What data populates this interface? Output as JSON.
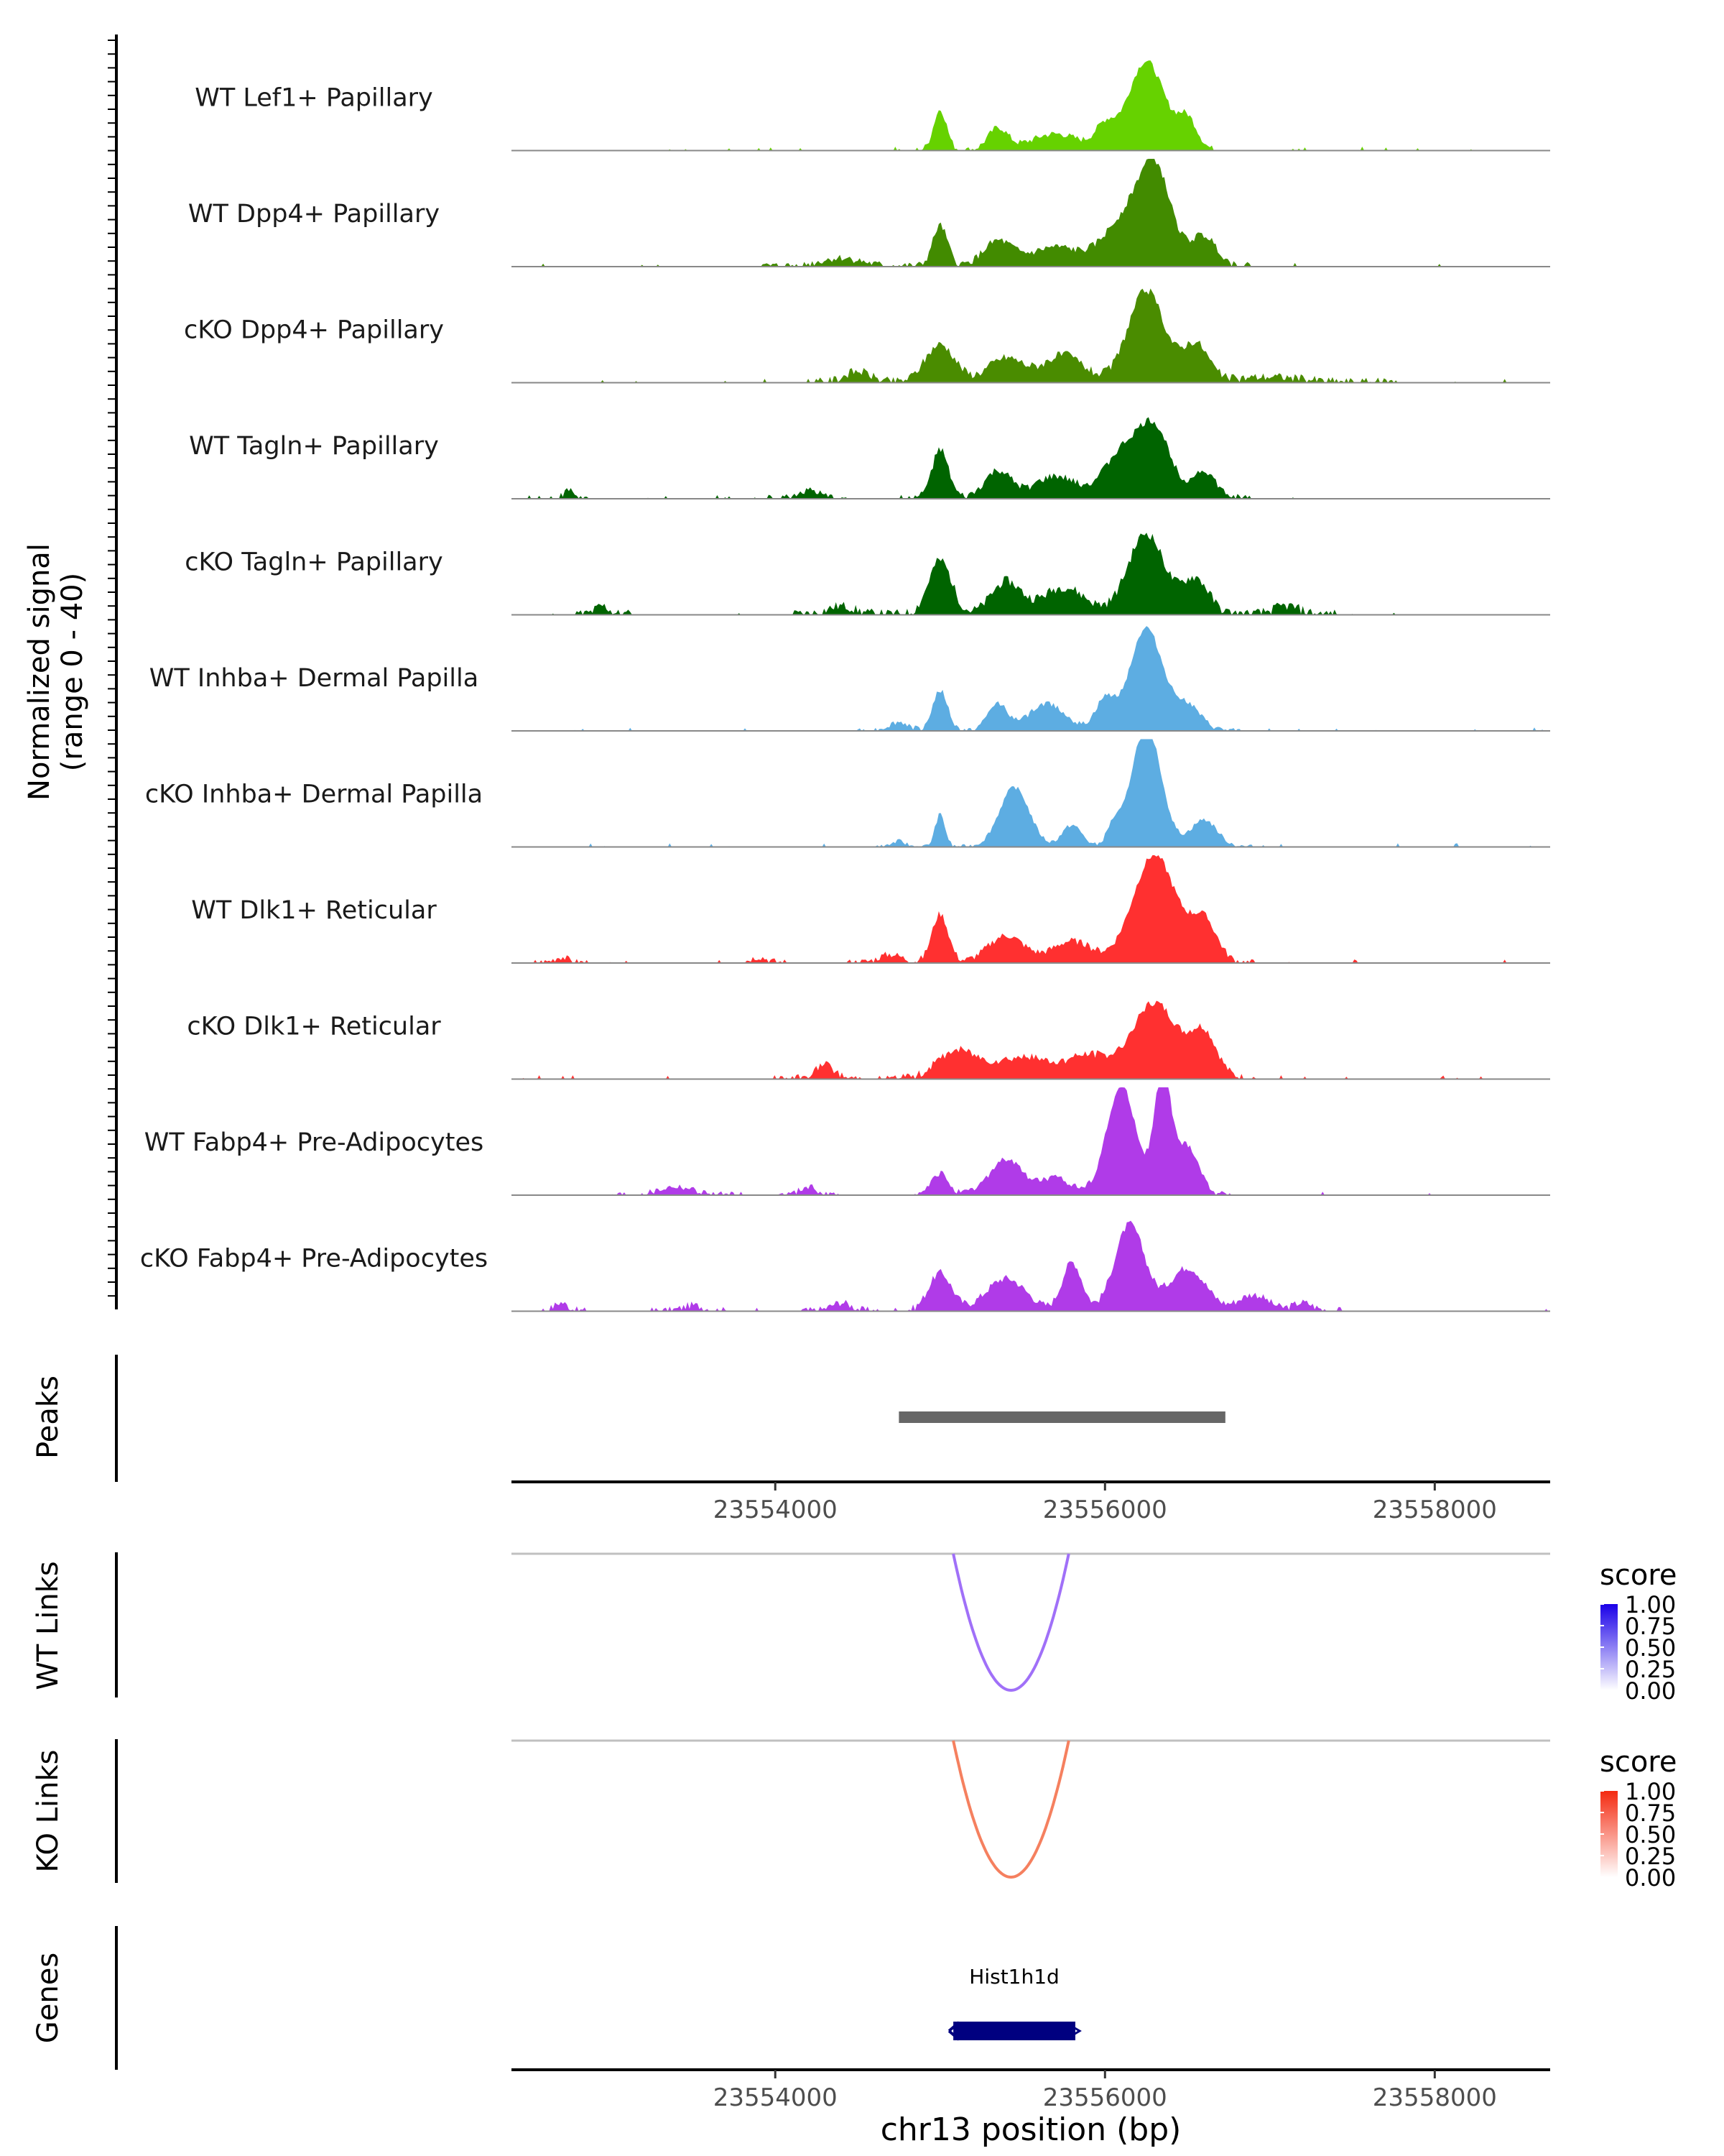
{
  "chart_data": {
    "type": "area",
    "region": {
      "chromosome": "chr13",
      "start": 23552400,
      "end": 23558700
    },
    "coverage": {
      "ylabel_line1": "Normalized signal",
      "ylabel_line2": "(range 0 - 40)",
      "ylim": [
        0,
        40
      ],
      "tracks": [
        {
          "name": "WT Lef1+ Papillary",
          "color": "#66D200",
          "peaks": [
            [
              23555000,
              15,
              40
            ],
            [
              23555350,
              8,
              60
            ],
            [
              23555700,
              6,
              150
            ],
            [
              23556000,
              8,
              60
            ],
            [
              23556250,
              33,
              110
            ],
            [
              23556500,
              11,
              60
            ]
          ],
          "noise": 1.2
        },
        {
          "name": "WT Dpp4+ Papillary",
          "color": "#428B00",
          "peaks": [
            [
              23554400,
              3,
              120
            ],
            [
              23555000,
              15,
              45
            ],
            [
              23555350,
              9,
              90
            ],
            [
              23555700,
              7,
              150
            ],
            [
              23556100,
              15,
              120
            ],
            [
              23556300,
              36,
              100
            ],
            [
              23556600,
              11,
              80
            ]
          ],
          "noise": 1.4
        },
        {
          "name": "cKO Dpp4+ Papillary",
          "color": "#4A8C00",
          "peaks": [
            [
              23554500,
              4,
              80
            ],
            [
              23555000,
              14,
              90
            ],
            [
              23555400,
              9,
              110
            ],
            [
              23555750,
              10,
              120
            ],
            [
              23556250,
              34,
              110
            ],
            [
              23556550,
              14,
              80
            ],
            [
              23557000,
              2,
              200
            ]
          ],
          "noise": 1.6
        },
        {
          "name": "WT Tagln+ Papillary",
          "color": "#006400",
          "peaks": [
            [
              23552750,
              3,
              30
            ],
            [
              23554200,
              3,
              60
            ],
            [
              23555000,
              18,
              50
            ],
            [
              23555350,
              10,
              80
            ],
            [
              23555700,
              8,
              130
            ],
            [
              23556100,
              16,
              110
            ],
            [
              23556300,
              25,
              100
            ],
            [
              23556600,
              10,
              70
            ]
          ],
          "noise": 1.4
        },
        {
          "name": "cKO Tagln+ Papillary",
          "color": "#006400",
          "peaks": [
            [
              23552950,
              3,
              40
            ],
            [
              23554400,
              3,
              80
            ],
            [
              23555000,
              20,
              70
            ],
            [
              23555400,
              12,
              90
            ],
            [
              23555750,
              10,
              130
            ],
            [
              23556250,
              30,
              110
            ],
            [
              23556550,
              13,
              80
            ],
            [
              23557100,
              3,
              80
            ]
          ],
          "noise": 1.8
        },
        {
          "name": "WT Inhba+ Dermal Papilla",
          "color": "#5DADE2",
          "peaks": [
            [
              23554750,
              3,
              60
            ],
            [
              23555000,
              15,
              45
            ],
            [
              23555350,
              10,
              60
            ],
            [
              23555650,
              10,
              110
            ],
            [
              23556000,
              11,
              60
            ],
            [
              23556250,
              38,
              100
            ],
            [
              23556500,
              9,
              80
            ]
          ],
          "noise": 1.0
        },
        {
          "name": "cKO Inhba+ Dermal Papilla",
          "color": "#5DADE2",
          "peaks": [
            [
              23554750,
              2,
              40
            ],
            [
              23555000,
              12,
              30
            ],
            [
              23555450,
              22,
              90
            ],
            [
              23555800,
              8,
              60
            ],
            [
              23556050,
              7,
              40
            ],
            [
              23556250,
              45,
              90
            ],
            [
              23556600,
              10,
              80
            ]
          ],
          "noise": 0.8
        },
        {
          "name": "WT Dlk1+ Reticular",
          "color": "#FF3030",
          "peaks": [
            [
              23552700,
              2,
              40
            ],
            [
              23553900,
              2,
              50
            ],
            [
              23554700,
              3,
              70
            ],
            [
              23555000,
              18,
              50
            ],
            [
              23555400,
              10,
              110
            ],
            [
              23555800,
              8,
              120
            ],
            [
              23556300,
              40,
              130
            ],
            [
              23556600,
              15,
              80
            ]
          ],
          "noise": 1.3
        },
        {
          "name": "cKO Dlk1+ Reticular",
          "color": "#FF3030",
          "peaks": [
            [
              23554300,
              5,
              60
            ],
            [
              23555100,
              10,
              120
            ],
            [
              23555500,
              8,
              180
            ],
            [
              23555900,
              8,
              120
            ],
            [
              23556300,
              28,
              140
            ],
            [
              23556600,
              16,
              80
            ]
          ],
          "noise": 1.5
        },
        {
          "name": "WT Fabp4+ Pre-Adipocytes",
          "color": "#B03BE8",
          "peaks": [
            [
              23553400,
              3,
              100
            ],
            [
              23554200,
              3,
              50
            ],
            [
              23555000,
              8,
              50
            ],
            [
              23555400,
              13,
              100
            ],
            [
              23555700,
              6,
              100
            ],
            [
              23556100,
              40,
              90
            ],
            [
              23556350,
              45,
              50
            ],
            [
              23556500,
              18,
              70
            ]
          ],
          "noise": 1.2
        },
        {
          "name": "cKO Fabp4+ Pre-Adipocytes",
          "color": "#B03BE8",
          "peaks": [
            [
              23552700,
              3,
              40
            ],
            [
              23553500,
              2,
              60
            ],
            [
              23554400,
              3,
              60
            ],
            [
              23555000,
              14,
              70
            ],
            [
              23555400,
              12,
              120
            ],
            [
              23555800,
              18,
              60
            ],
            [
              23556150,
              32,
              90
            ],
            [
              23556500,
              16,
              110
            ],
            [
              23556900,
              6,
              90
            ],
            [
              23557200,
              3,
              60
            ]
          ],
          "noise": 1.4
        }
      ]
    },
    "peaks_track": {
      "label": "Peaks",
      "intervals": [
        {
          "start": 23554750,
          "end": 23556730
        }
      ],
      "color": "#666666"
    },
    "x_axis": {
      "ticks": [
        23554000,
        23556000,
        23558000
      ],
      "tick_labels": [
        "23554000",
        "23556000",
        "23558000"
      ],
      "label": "chr13 position (bp)"
    },
    "links": [
      {
        "label": "WT Links",
        "start": 23555080,
        "end": 23555780,
        "score": 0.55,
        "color": "#A070F8",
        "legend_title": "score",
        "legend_ticks": [
          "1.00",
          "0.75",
          "0.50",
          "0.25",
          "0.00"
        ],
        "legend_colors": [
          "#1A00E8",
          "#FFFFFF"
        ]
      },
      {
        "label": "KO Links",
        "start": 23555080,
        "end": 23555780,
        "score": 0.55,
        "color": "#F5805F",
        "legend_title": "score",
        "legend_ticks": [
          "1.00",
          "0.75",
          "0.50",
          "0.25",
          "0.00"
        ],
        "legend_colors": [
          "#F42A10",
          "#FFFFFF"
        ]
      }
    ],
    "genes": {
      "label": "Genes",
      "items": [
        {
          "name": "Hist1h1d",
          "start": 23555080,
          "end": 23555820,
          "strand": "-",
          "color": "#000080"
        }
      ]
    }
  }
}
